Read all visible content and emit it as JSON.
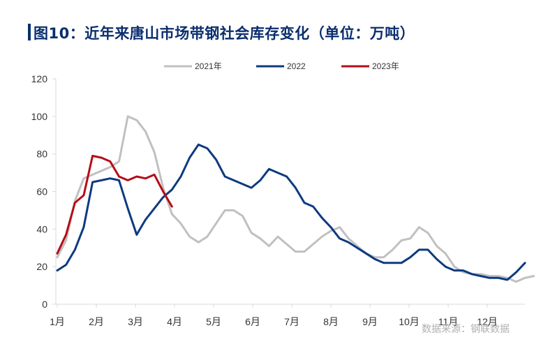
{
  "title": "图10：近年来唐山市场带钢社会库存变化（单位：万吨）",
  "source": "数据来源：钢联数据",
  "colors": {
    "title": "#0a2e6e",
    "y2021": "#c0c0c0",
    "y2022": "#0d3a80",
    "y2023": "#b50d18",
    "axis": "#d9d9d9"
  },
  "chart_data": {
    "type": "line",
    "title": "图10：近年来唐山市场带钢社会库存变化（单位：万吨）",
    "xlabel": "",
    "ylabel": "",
    "ylim": [
      0,
      120
    ],
    "yticks": [
      0,
      20,
      40,
      60,
      80,
      100,
      120
    ],
    "xlim": [
      0,
      48
    ],
    "x_ticks": [
      {
        "x": 0,
        "label": "1月"
      },
      {
        "x": 4.6,
        "label": "2月"
      },
      {
        "x": 9.2,
        "label": "3月"
      },
      {
        "x": 13.8,
        "label": "4月"
      },
      {
        "x": 18.5,
        "label": "5月"
      },
      {
        "x": 23.1,
        "label": "6月"
      },
      {
        "x": 27.7,
        "label": "7月"
      },
      {
        "x": 32.3,
        "label": "8月"
      },
      {
        "x": 36.9,
        "label": "9月"
      },
      {
        "x": 41.5,
        "label": "10月"
      },
      {
        "x": 46.2,
        "label": "11月"
      },
      {
        "x": 50.8,
        "label": "12月"
      }
    ],
    "legend_position": "top-center",
    "grid": false,
    "series": [
      {
        "name": "2021年",
        "color": "#c0c0c0",
        "values": [
          25,
          34,
          55,
          67,
          69,
          71,
          73,
          76,
          100,
          98,
          92,
          81,
          62,
          48,
          43,
          36,
          33,
          36,
          43,
          50,
          50,
          47,
          38,
          35,
          31,
          36,
          32,
          28,
          28,
          32,
          36,
          39,
          41,
          35,
          31,
          27,
          25,
          25,
          29,
          34,
          35,
          41,
          38,
          31,
          27,
          20,
          17,
          16,
          16,
          15,
          15,
          14,
          12,
          14,
          15
        ]
      },
      {
        "name": "2022",
        "color": "#0d3a80",
        "values": [
          18,
          21,
          29,
          41,
          65,
          66,
          67,
          66,
          51,
          37,
          45,
          51,
          57,
          61,
          68,
          78,
          85,
          83,
          77,
          68,
          66,
          64,
          62,
          66,
          72,
          70,
          68,
          62,
          54,
          52,
          46,
          41,
          35,
          33,
          30,
          27,
          24,
          22,
          22,
          22,
          25,
          29,
          29,
          24,
          20,
          18,
          18,
          16,
          15,
          14,
          14,
          13,
          17,
          22
        ]
      },
      {
        "name": "2023年",
        "color": "#b50d18",
        "values": [
          27,
          37,
          54,
          58,
          79,
          78,
          76,
          68,
          66,
          68,
          67,
          69,
          60,
          52
        ]
      }
    ]
  }
}
